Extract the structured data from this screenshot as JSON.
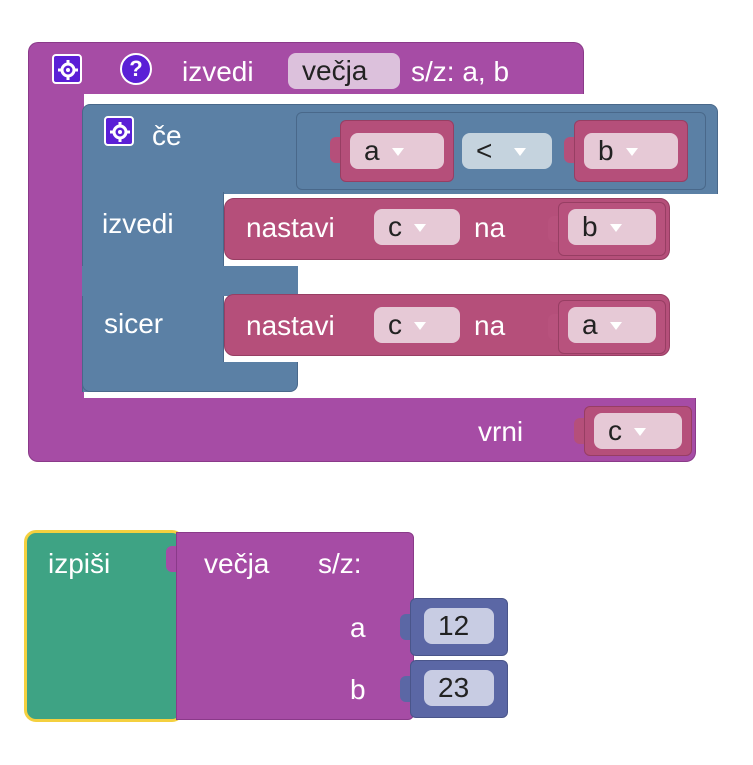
{
  "procedure": {
    "keyword": "izvedi",
    "name": "večja",
    "params_label": "s/z: a, b",
    "return_label": "vrni",
    "return_var": "c"
  },
  "if_block": {
    "label": "če",
    "do_label": "izvedi",
    "else_label": "sicer",
    "condition": {
      "left": "a",
      "operator": "<",
      "right": "b"
    },
    "do_stmt": {
      "label": "nastavi",
      "var": "c",
      "to_label": "na",
      "value": "b"
    },
    "else_stmt": {
      "label": "nastavi",
      "var": "c",
      "to_label": "na",
      "value": "a"
    }
  },
  "print_block": {
    "label": "izpiši",
    "call_name": "večja",
    "call_params_label": "s/z:",
    "args": [
      {
        "name": "a",
        "value": "12"
      },
      {
        "name": "b",
        "value": "23"
      }
    ]
  },
  "icons": {
    "gear": "gear-icon",
    "help": "help-icon"
  },
  "colors": {
    "procedure": "#a64ca5",
    "logic": "#5b80a5",
    "variable": "#b54f7a",
    "math": "#5b67a5",
    "text": "#3ea384",
    "mutator": "#5b1fd6"
  }
}
